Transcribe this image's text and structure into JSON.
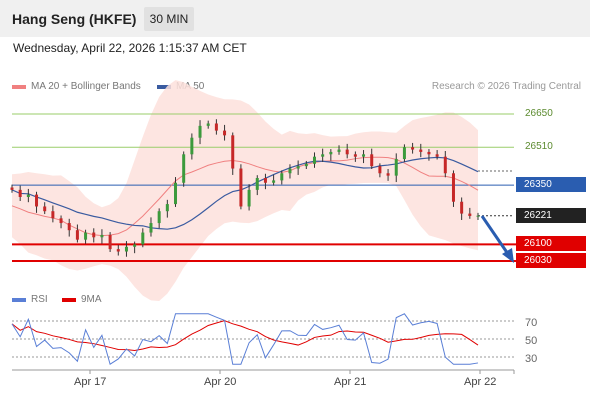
{
  "header": {
    "title": "Hang Seng (HKFE)",
    "timeframe": "30 MIN",
    "datetime": "Wednesday, April 22, 2026 1:15:37 AM CET"
  },
  "legend": {
    "ma20": "MA 20 + Bollinger Bands",
    "ma50": "MA 50",
    "copyright": "Research © 2026 Trading Central"
  },
  "colors": {
    "ma20": "#f08080",
    "ma50": "#3a5ba0",
    "bollinger_fill": "#fde0dc",
    "resistance_line": "#9acd6a",
    "pivot_line": "#2a5db0",
    "support_line": "#e00000",
    "last_price_box": "#222222",
    "up_candle": "#3c9a3c",
    "down_candle": "#c62828",
    "rsi": "#5a7fd6",
    "rsi_ma": "#e00000",
    "arrow": "#2a5db0"
  },
  "price_levels": [
    {
      "value": "26650",
      "kind": "resistance"
    },
    {
      "value": "26510",
      "kind": "resistance"
    },
    {
      "value": "26350",
      "kind": "pivot"
    },
    {
      "value": "26221",
      "kind": "last"
    },
    {
      "value": "26100",
      "kind": "support"
    },
    {
      "value": "26030",
      "kind": "support"
    }
  ],
  "rsi_panel": {
    "rsi_label": "RSI",
    "ma_label": "9MA",
    "levels": [
      "70",
      "50",
      "30"
    ]
  },
  "x_axis": [
    "Apr 17",
    "Apr 20",
    "Apr 21",
    "Apr 22"
  ],
  "chart_data": {
    "type": "candlestick",
    "price_range": [
      25950,
      26800
    ],
    "levels": [
      26650,
      26510,
      26350,
      26221,
      26100,
      26030
    ],
    "close_path": [
      26330,
      26300,
      26310,
      26260,
      26240,
      26210,
      26190,
      26160,
      26120,
      26150,
      26130,
      26140,
      26080,
      26070,
      26090,
      26100,
      26150,
      26190,
      26240,
      26270,
      26360,
      26480,
      26550,
      26600,
      26610,
      26580,
      26560,
      26420,
      26260,
      26330,
      26380,
      26360,
      26370,
      26400,
      26420,
      26430,
      26440,
      26470,
      26480,
      26490,
      26500,
      26480,
      26470,
      26480,
      26430,
      26400,
      26390,
      26460,
      26510,
      26500,
      26490,
      26480,
      26470,
      26400,
      26280,
      26230,
      26220,
      26221
    ],
    "rsi_range": [
      20,
      80
    ],
    "rsi_levels": [
      70,
      50,
      30
    ]
  }
}
